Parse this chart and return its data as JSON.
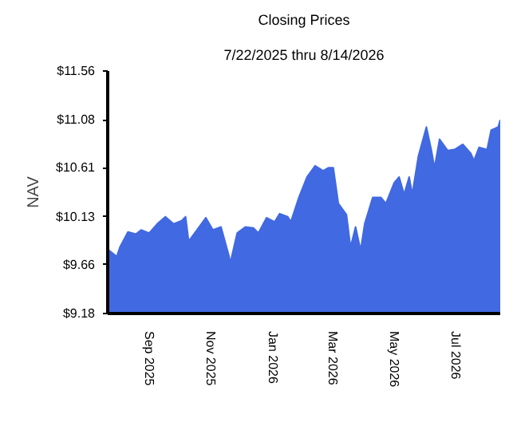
{
  "chart_data": {
    "type": "area",
    "title": "Closing Prices",
    "subtitle": "7/22/2025 thru 8/14/2026",
    "ylabel": "NAV",
    "x": [
      "2025-07-22",
      "2025-07-31",
      "2025-08-03",
      "2025-08-11",
      "2025-08-19",
      "2025-08-24",
      "2025-09-01",
      "2025-09-09",
      "2025-09-17",
      "2025-09-25",
      "2025-10-03",
      "2025-10-07",
      "2025-10-10",
      "2025-10-16",
      "2025-10-27",
      "2025-11-03",
      "2025-11-11",
      "2025-11-19",
      "2025-11-20",
      "2025-11-27",
      "2025-12-05",
      "2025-12-13",
      "2025-12-18",
      "2025-12-26",
      "2026-01-03",
      "2026-01-08",
      "2026-01-16",
      "2026-01-19",
      "2026-01-27",
      "2026-02-04",
      "2026-02-12",
      "2026-02-20",
      "2026-02-25",
      "2026-03-02",
      "2026-03-07",
      "2026-03-15",
      "2026-03-19",
      "2026-03-24",
      "2026-03-29",
      "2026-04-02",
      "2026-04-10",
      "2026-04-18",
      "2026-04-23",
      "2026-05-01",
      "2026-05-06",
      "2026-05-11",
      "2026-05-16",
      "2026-05-19",
      "2026-05-25",
      "2026-06-02",
      "2026-06-07",
      "2026-06-10",
      "2026-06-15",
      "2026-06-23",
      "2026-06-30",
      "2026-07-08",
      "2026-07-16",
      "2026-07-19",
      "2026-07-24",
      "2026-08-01",
      "2026-08-05",
      "2026-08-12",
      "2026-08-14"
    ],
    "series": [
      {
        "color": "#4169e1",
        "values": [
          9.81,
          9.74,
          9.83,
          9.98,
          9.96,
          10.0,
          9.97,
          10.06,
          10.13,
          10.06,
          10.09,
          10.13,
          9.89,
          9.97,
          10.12,
          10.0,
          10.03,
          9.74,
          9.67,
          9.97,
          10.03,
          10.02,
          9.97,
          10.12,
          10.08,
          10.16,
          10.13,
          10.08,
          10.32,
          10.52,
          10.63,
          10.58,
          10.61,
          10.61,
          10.26,
          10.15,
          9.83,
          10.03,
          9.8,
          10.06,
          10.32,
          10.32,
          10.26,
          10.46,
          10.52,
          10.35,
          10.52,
          10.35,
          10.72,
          11.01,
          10.78,
          10.61,
          10.89,
          10.78,
          10.79,
          10.84,
          10.75,
          10.68,
          10.81,
          10.79,
          10.98,
          11.01,
          11.08
        ]
      }
    ],
    "xlim": [
      "2025-07-22",
      "2026-08-14"
    ],
    "xticks": [
      {
        "value": "2025-09-01",
        "label": "Sep  2025"
      },
      {
        "value": "2025-11-01",
        "label": "Nov  2025"
      },
      {
        "value": "2026-01-01",
        "label": "Jan  2026"
      },
      {
        "value": "2026-03-01",
        "label": "Mar  2026"
      },
      {
        "value": "2026-05-01",
        "label": "May  2026"
      },
      {
        "value": "2026-07-01",
        "label": "Jul  2026"
      }
    ],
    "ylim": [
      9.18,
      11.56
    ],
    "yticks": [
      {
        "value": 9.18,
        "label": "$9.18"
      },
      {
        "value": 9.66,
        "label": "$9.66"
      },
      {
        "value": 10.13,
        "label": "$10.13"
      },
      {
        "value": 10.61,
        "label": "$10.61"
      },
      {
        "value": 11.08,
        "label": "$11.08"
      },
      {
        "value": 11.56,
        "label": "$11.56"
      }
    ],
    "grid": false
  }
}
